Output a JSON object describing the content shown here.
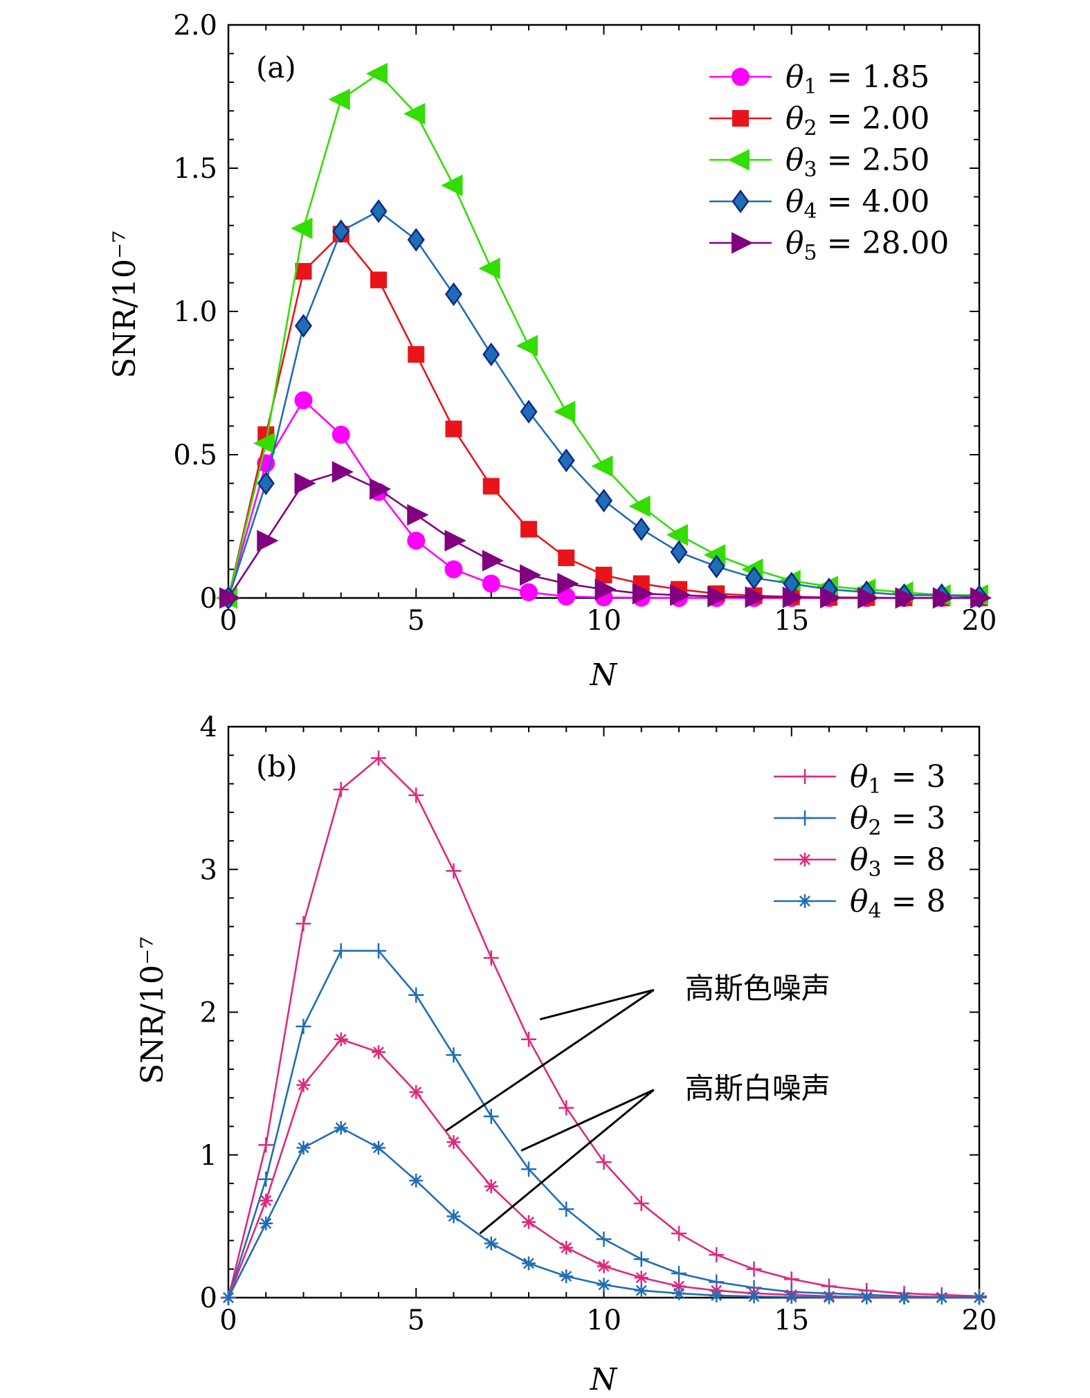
{
  "chart_data": [
    {
      "panel": "(a)",
      "type": "line",
      "xlabel": "N",
      "ylabel": "SNR/10⁻⁷",
      "xlim": [
        0,
        20
      ],
      "ylim": [
        0,
        2.0
      ],
      "xticks": [
        0,
        5,
        10,
        15,
        20
      ],
      "xtick_labels": [
        "0",
        "5",
        "10",
        "15",
        "20"
      ],
      "yticks": [
        0,
        0.5,
        1.0,
        1.5,
        2.0
      ],
      "ytick_labels": [
        "0",
        "0.5",
        "1.0",
        "1.5",
        "2.0"
      ],
      "legend_position": "top-right",
      "x": [
        0,
        1,
        2,
        3,
        4,
        5,
        6,
        7,
        8,
        9,
        10,
        11,
        12,
        13,
        14,
        15,
        16,
        17,
        18,
        19,
        20
      ],
      "series": [
        {
          "name": "θ1 = 1.85",
          "sym": "θ",
          "sub": "1",
          "val": "= 1.85",
          "color": "#ff00ff",
          "marker": "circle",
          "values": [
            0,
            0.47,
            0.69,
            0.57,
            0.37,
            0.2,
            0.1,
            0.05,
            0.02,
            0.005,
            0.002,
            0.001,
            0,
            0,
            0,
            0,
            0,
            0,
            0,
            0,
            0
          ]
        },
        {
          "name": "θ2 = 2.00",
          "sym": "θ",
          "sub": "2",
          "val": "= 2.00",
          "color": "#e8141a",
          "marker": "square",
          "values": [
            0,
            0.57,
            1.14,
            1.27,
            1.11,
            0.85,
            0.59,
            0.39,
            0.24,
            0.14,
            0.08,
            0.05,
            0.03,
            0.015,
            0.008,
            0.004,
            0.002,
            0.001,
            0,
            0,
            0
          ]
        },
        {
          "name": "θ3 = 2.50",
          "sym": "θ",
          "sub": "3",
          "val": "= 2.50",
          "color": "#33dd00",
          "marker": "triangle-left",
          "values": [
            0,
            0.54,
            1.29,
            1.74,
            1.83,
            1.69,
            1.44,
            1.15,
            0.88,
            0.65,
            0.46,
            0.32,
            0.22,
            0.15,
            0.1,
            0.06,
            0.04,
            0.03,
            0.02,
            0.01,
            0.01
          ]
        },
        {
          "name": "θ4 = 4.00",
          "sym": "θ",
          "sub": "4",
          "val": "= 4.00",
          "color": "#1f6db5",
          "marker": "diamond",
          "values": [
            0,
            0.4,
            0.95,
            1.28,
            1.35,
            1.25,
            1.06,
            0.85,
            0.65,
            0.48,
            0.34,
            0.24,
            0.16,
            0.11,
            0.07,
            0.05,
            0.03,
            0.02,
            0.01,
            0.01,
            0.005
          ]
        },
        {
          "name": "θ5 = 28.00",
          "sym": "θ",
          "sub": "5",
          "val": "= 28.00",
          "color": "#800080",
          "marker": "triangle-right",
          "values": [
            0,
            0.2,
            0.4,
            0.44,
            0.38,
            0.29,
            0.2,
            0.13,
            0.08,
            0.05,
            0.03,
            0.015,
            0.01,
            0.005,
            0.003,
            0.002,
            0.001,
            0,
            0,
            0,
            0
          ]
        }
      ]
    },
    {
      "panel": "(b)",
      "type": "line",
      "xlabel": "N",
      "ylabel": "SNR/10⁻⁷",
      "xlim": [
        0,
        20
      ],
      "ylim": [
        0,
        4
      ],
      "xticks": [
        0,
        5,
        10,
        15,
        20
      ],
      "xtick_labels": [
        "0",
        "5",
        "10",
        "15",
        "20"
      ],
      "yticks": [
        0,
        1,
        2,
        3,
        4
      ],
      "ytick_labels": [
        "0",
        "1",
        "2",
        "3",
        "4"
      ],
      "legend_position": "top-right",
      "x": [
        0,
        1,
        2,
        3,
        4,
        5,
        6,
        7,
        8,
        9,
        10,
        11,
        12,
        13,
        14,
        15,
        16,
        17,
        18,
        19,
        20
      ],
      "series": [
        {
          "name": "θ1 = 3",
          "sym": "θ",
          "sub": "1",
          "val": "= 3",
          "color": "#e0287c",
          "marker": "plus",
          "values": [
            0,
            1.07,
            2.62,
            3.56,
            3.78,
            3.52,
            2.99,
            2.38,
            1.81,
            1.33,
            0.95,
            0.66,
            0.45,
            0.3,
            0.2,
            0.13,
            0.08,
            0.05,
            0.03,
            0.02,
            0.01
          ]
        },
        {
          "name": "θ2 = 3",
          "sym": "θ",
          "sub": "2",
          "val": "= 3",
          "color": "#1f6db5",
          "marker": "plus",
          "values": [
            0,
            0.83,
            1.9,
            2.43,
            2.43,
            2.12,
            1.7,
            1.27,
            0.9,
            0.62,
            0.41,
            0.27,
            0.17,
            0.11,
            0.07,
            0.04,
            0.03,
            0.02,
            0.01,
            0.005,
            0.003
          ]
        },
        {
          "name": "θ3 = 8",
          "sym": "θ",
          "sub": "3",
          "val": "= 8",
          "color": "#e0287c",
          "marker": "asterisk",
          "values": [
            0,
            0.68,
            1.49,
            1.81,
            1.72,
            1.44,
            1.09,
            0.78,
            0.53,
            0.35,
            0.22,
            0.14,
            0.08,
            0.05,
            0.03,
            0.02,
            0.01,
            0.005,
            0.003,
            0.002,
            0.001
          ]
        },
        {
          "name": "θ4 = 8",
          "sym": "θ",
          "sub": "4",
          "val": "= 8",
          "color": "#1f6db5",
          "marker": "asterisk",
          "values": [
            0,
            0.52,
            1.05,
            1.19,
            1.05,
            0.82,
            0.57,
            0.38,
            0.24,
            0.15,
            0.09,
            0.05,
            0.03,
            0.015,
            0.008,
            0.004,
            0.002,
            0.001,
            0,
            0,
            0
          ]
        }
      ],
      "annotations": [
        {
          "text": "高斯色噪声",
          "targets": [
            [
              8.3,
              1.95
            ],
            [
              5.8,
              1.17
            ]
          ],
          "label_x": 11.7,
          "label_y": 2.18
        },
        {
          "text": "高斯白噪声",
          "targets": [
            [
              7.8,
              1.03
            ],
            [
              6.7,
              0.45
            ]
          ],
          "label_x": 11.7,
          "label_y": 1.48
        }
      ]
    }
  ]
}
